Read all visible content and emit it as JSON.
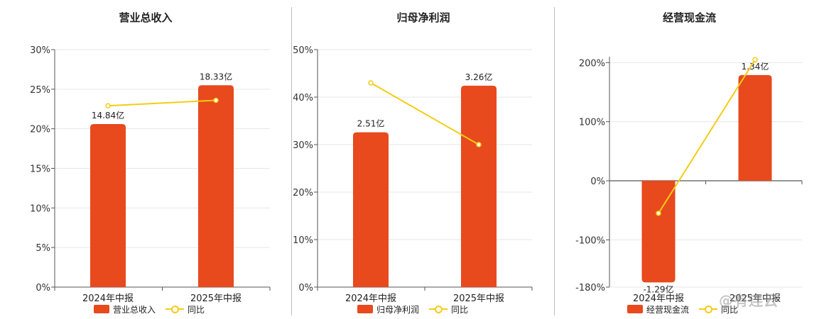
{
  "colors": {
    "bar": "#e8491d",
    "line": "#f4cc15",
    "grid": "#e6e6e6",
    "axis": "#555555"
  },
  "line_legend_label": "同比",
  "chart_data": [
    {
      "type": "bar",
      "title": "营业总收入",
      "categories": [
        "2024年中报",
        "2025年中报"
      ],
      "series": [
        {
          "name": "营业总收入",
          "kind": "bar",
          "values": [
            20.6,
            25.5
          ],
          "labels": [
            "14.84亿",
            "18.33亿"
          ]
        },
        {
          "name": "同比",
          "kind": "line",
          "values": [
            22.9,
            23.6
          ]
        }
      ],
      "y_ticks": [
        "0%",
        "5%",
        "10%",
        "15%",
        "20%",
        "25%",
        "30%"
      ],
      "ylim": [
        0,
        30
      ]
    },
    {
      "type": "bar",
      "title": "归母净利润",
      "categories": [
        "2024年中报",
        "2025年中报"
      ],
      "series": [
        {
          "name": "归母净利润",
          "kind": "bar",
          "values": [
            32.6,
            42.4
          ],
          "labels": [
            "2.51亿",
            "3.26亿"
          ]
        },
        {
          "name": "同比",
          "kind": "line",
          "values": [
            43.0,
            30.0
          ]
        }
      ],
      "y_ticks": [
        "0%",
        "10%",
        "20%",
        "30%",
        "40%",
        "50%"
      ],
      "ylim": [
        0,
        50
      ]
    },
    {
      "type": "bar",
      "title": "经营现金流",
      "categories": [
        "2024年中报",
        "2025年中报"
      ],
      "series": [
        {
          "name": "经营现金流",
          "kind": "bar",
          "values": [
            -172,
            179
          ],
          "labels": [
            "-1.29亿",
            "1.34亿"
          ]
        },
        {
          "name": "同比",
          "kind": "line",
          "values": [
            -55,
            205
          ]
        }
      ],
      "y_ticks": [
        "-180%",
        "-100%",
        "0%",
        "100%",
        "200%"
      ],
      "y_tick_values": [
        -180,
        -100,
        0,
        100,
        200
      ],
      "ylim": [
        -180,
        210
      ]
    }
  ],
  "watermark": "@有连云"
}
